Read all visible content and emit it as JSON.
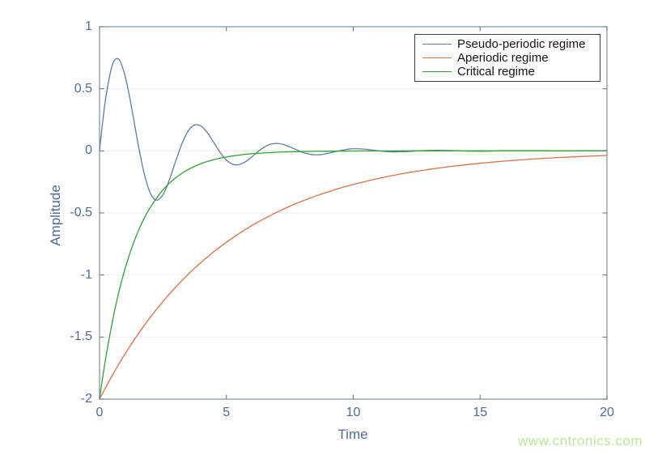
{
  "figure": {
    "xlabel": "Time",
    "ylabel": "Amplitude",
    "watermark": "www.cntronics.com"
  },
  "axes": {
    "xlim": [
      0,
      20
    ],
    "ylim": [
      -2,
      1
    ],
    "xticks": [
      0,
      5,
      10,
      15,
      20
    ],
    "xtick_labels": [
      "0",
      "5",
      "10",
      "15",
      "20"
    ],
    "yticks": [
      1,
      0.5,
      0,
      -0.5,
      -1,
      -1.5,
      -2
    ],
    "ytick_labels": [
      "1",
      "0.5",
      "0",
      "-0.5",
      "-1",
      "-1.5",
      "-2"
    ],
    "grid": "horizontal-only",
    "colors": {
      "box": "#7e8fa0",
      "tick": "#5f6e7e",
      "grid": "#ebebeb",
      "label_text": "#4d6b94",
      "legend_border": "#3e3e3e",
      "watermark": "#b9e79b"
    }
  },
  "chart_data": {
    "type": "line",
    "title": "",
    "xlabel": "Time",
    "ylabel": "Amplitude",
    "xlim": [
      0,
      20
    ],
    "ylim": [
      -2,
      1
    ],
    "grid": "horizontal gridlines at each y tick",
    "legend_position": "top-right",
    "legend_entries": [
      "Pseudo-periodic regime",
      "Aperiodic regime",
      "Critical regime"
    ],
    "series": [
      {
        "name": "Pseudo-periodic regime",
        "color": "#5b7ca4",
        "points": [
          [
            0,
            0
          ],
          [
            0.1,
            0.191
          ],
          [
            0.25,
            0.434
          ],
          [
            0.5,
            0.689
          ],
          [
            0.75,
            0.739
          ],
          [
            1,
            0.609
          ],
          [
            1.25,
            0.363
          ],
          [
            1.5,
            0.077
          ],
          [
            1.75,
            -0.174
          ],
          [
            2,
            -0.34
          ],
          [
            2.25,
            -0.397
          ],
          [
            2.5,
            -0.353
          ],
          [
            2.75,
            -0.235
          ],
          [
            3,
            -0.084
          ],
          [
            3.25,
            0.059
          ],
          [
            3.5,
            0.162
          ],
          [
            3.75,
            0.209
          ],
          [
            4,
            0.2
          ],
          [
            4.25,
            0.146
          ],
          [
            4.5,
            0.068
          ],
          [
            4.75,
            -0.011
          ],
          [
            5,
            -0.074
          ],
          [
            5.25,
            -0.108
          ],
          [
            5.5,
            -0.111
          ],
          [
            5.75,
            -0.088
          ],
          [
            6,
            -0.049
          ],
          [
            6.25,
            -0.005
          ],
          [
            6.5,
            0.031
          ],
          [
            6.75,
            0.054
          ],
          [
            7,
            0.06
          ],
          [
            7.25,
            0.051
          ],
          [
            7.5,
            0.032
          ],
          [
            7.75,
            0.01
          ],
          [
            8,
            -0.012
          ],
          [
            8.25,
            -0.026
          ],
          [
            8.5,
            -0.032
          ],
          [
            8.75,
            -0.03
          ],
          [
            9,
            -0.021
          ],
          [
            9.25,
            -0.008
          ],
          [
            9.5,
            0.003
          ],
          [
            9.75,
            0.012
          ],
          [
            10,
            0.017
          ],
          [
            10.5,
            0.013
          ],
          [
            11,
            0
          ],
          [
            11.5,
            -0.008
          ],
          [
            12,
            -0.007
          ],
          [
            12.5,
            -0.001
          ],
          [
            13,
            0.004
          ],
          [
            13.5,
            0.004
          ],
          [
            14,
            0.001
          ],
          [
            15,
            -0.003
          ],
          [
            16,
            0.001
          ],
          [
            17,
            0.001
          ],
          [
            18,
            -0.001
          ],
          [
            19,
            0
          ],
          [
            20,
            0
          ]
        ]
      },
      {
        "name": "Aperiodic regime",
        "color": "#d8714a",
        "points": [
          [
            0,
            -2
          ],
          [
            0.25,
            -1.902
          ],
          [
            0.5,
            -1.81
          ],
          [
            1,
            -1.637
          ],
          [
            1.5,
            -1.482
          ],
          [
            2,
            -1.341
          ],
          [
            2.5,
            -1.213
          ],
          [
            3,
            -1.098
          ],
          [
            3.5,
            -0.993
          ],
          [
            4,
            -0.899
          ],
          [
            4.5,
            -0.813
          ],
          [
            5,
            -0.736
          ],
          [
            5.5,
            -0.666
          ],
          [
            6,
            -0.602
          ],
          [
            6.5,
            -0.545
          ],
          [
            7,
            -0.493
          ],
          [
            7.5,
            -0.446
          ],
          [
            8,
            -0.404
          ],
          [
            8.5,
            -0.365
          ],
          [
            9,
            -0.331
          ],
          [
            9.5,
            -0.299
          ],
          [
            10,
            -0.271
          ],
          [
            11,
            -0.222
          ],
          [
            12,
            -0.181
          ],
          [
            13,
            -0.149
          ],
          [
            14,
            -0.122
          ],
          [
            15,
            -0.1
          ],
          [
            16,
            -0.082
          ],
          [
            17,
            -0.067
          ],
          [
            18,
            -0.055
          ],
          [
            19,
            -0.045
          ],
          [
            20,
            -0.037
          ]
        ]
      },
      {
        "name": "Critical regime",
        "color": "#31a137",
        "points": [
          [
            0,
            -2
          ],
          [
            0.1,
            -1.857
          ],
          [
            0.25,
            -1.662
          ],
          [
            0.5,
            -1.381
          ],
          [
            0.75,
            -1.147
          ],
          [
            1,
            -0.953
          ],
          [
            1.25,
            -0.792
          ],
          [
            1.5,
            -0.658
          ],
          [
            1.75,
            -0.547
          ],
          [
            2,
            -0.455
          ],
          [
            2.5,
            -0.314
          ],
          [
            3,
            -0.217
          ],
          [
            3.5,
            -0.15
          ],
          [
            4,
            -0.103
          ],
          [
            4.5,
            -0.071
          ],
          [
            5,
            -0.049
          ],
          [
            5.5,
            -0.034
          ],
          [
            6,
            -0.023
          ],
          [
            7,
            -0.011
          ],
          [
            8,
            -0.005
          ],
          [
            9,
            -0.003
          ],
          [
            10,
            -0.001
          ],
          [
            12,
            0
          ],
          [
            14,
            0
          ],
          [
            16,
            0
          ],
          [
            18,
            0
          ],
          [
            20,
            0
          ]
        ]
      }
    ]
  }
}
